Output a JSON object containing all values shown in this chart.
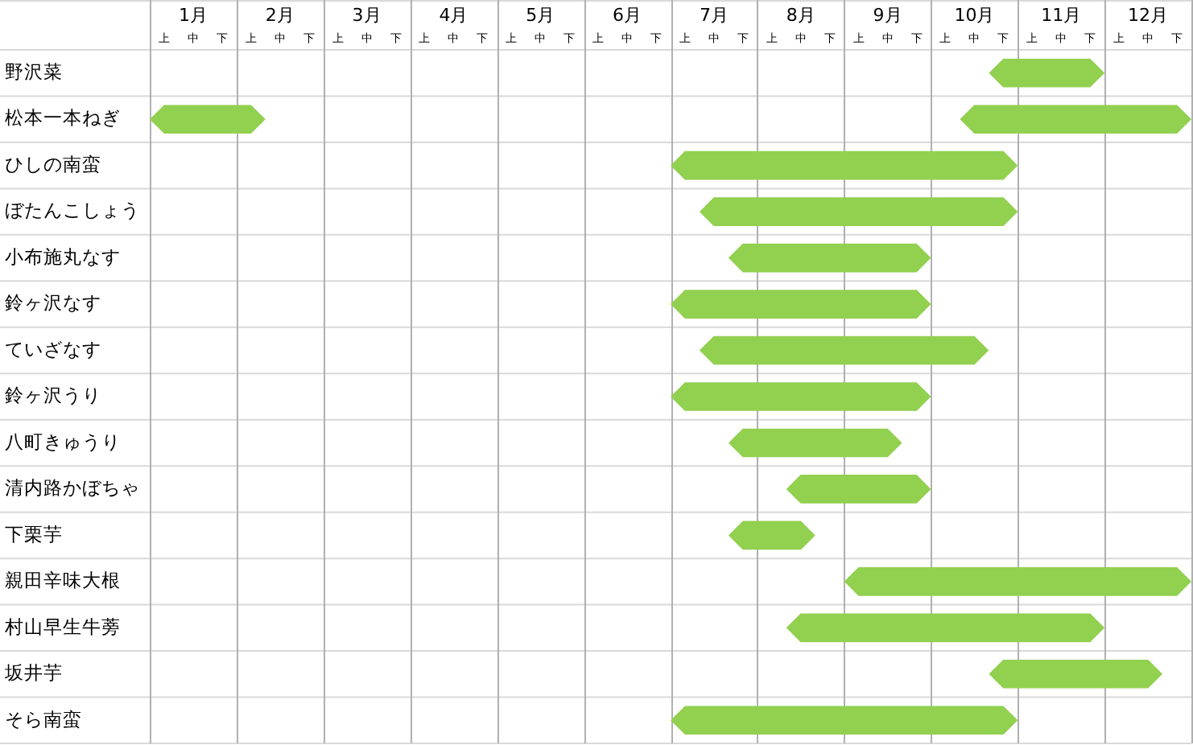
{
  "chart_data": {
    "type": "bar",
    "orientation": "horizontal",
    "grid": true,
    "categories": [
      "野沢菜",
      "松本一本ねぎ",
      "ひしの南蛮",
      "ぼたんこしょう",
      "小布施丸なす",
      "鈴ヶ沢なす",
      "ていざなす",
      "鈴ヶ沢うり",
      "八町きゅうり",
      "清内路かぼちゃ",
      "下栗芋",
      "親田辛味大根",
      "村山早生牛蒡",
      "坂井芋",
      "そら南蛮"
    ],
    "series": [
      {
        "color": "#92d050",
        "base": [
          10.167,
          0.5,
          6.5,
          6.833,
          7.167,
          6.5,
          6.833,
          6.5,
          7.167,
          7.833,
          7.167,
          8.5,
          7.833,
          10.167,
          6.5
        ],
        "values": [
          1.333,
          1.333,
          4,
          3.667,
          2.333,
          3,
          3.333,
          3,
          2,
          1.667,
          1,
          4,
          3.667,
          2,
          4
        ]
      },
      {
        "color": "#92d050",
        "base": [
          null,
          9.833,
          null,
          null,
          null,
          null,
          null,
          null,
          null,
          null,
          null,
          null,
          null,
          null,
          null
        ],
        "values": [
          null,
          2.667,
          null,
          null,
          null,
          null,
          null,
          null,
          null,
          null,
          null,
          null,
          null,
          null,
          null
        ]
      }
    ],
    "xlim": [
      0.5,
      12.5
    ],
    "xticks": [
      {
        "value": 1,
        "label": "1月"
      },
      {
        "value": 2,
        "label": "2月"
      },
      {
        "value": 3,
        "label": "3月"
      },
      {
        "value": 4,
        "label": "4月"
      },
      {
        "value": 5,
        "label": "5月"
      },
      {
        "value": 6,
        "label": "6月"
      },
      {
        "value": 7,
        "label": "7月"
      },
      {
        "value": 8,
        "label": "8月"
      },
      {
        "value": 9,
        "label": "9月"
      },
      {
        "value": 10,
        "label": "10月"
      },
      {
        "value": 11,
        "label": "11月"
      },
      {
        "value": 12,
        "label": "12月"
      }
    ],
    "annotations": [
      "上",
      "中",
      "下",
      "上",
      "中",
      "下",
      "上",
      "中",
      "下",
      "上",
      "中",
      "下",
      "上",
      "中",
      "下",
      "上",
      "中",
      "下",
      "上",
      "中",
      "下",
      "上",
      "中",
      "下",
      "上",
      "中",
      "下",
      "上",
      "中",
      "下",
      "上",
      "中",
      "下",
      "上",
      "中",
      "下"
    ]
  }
}
